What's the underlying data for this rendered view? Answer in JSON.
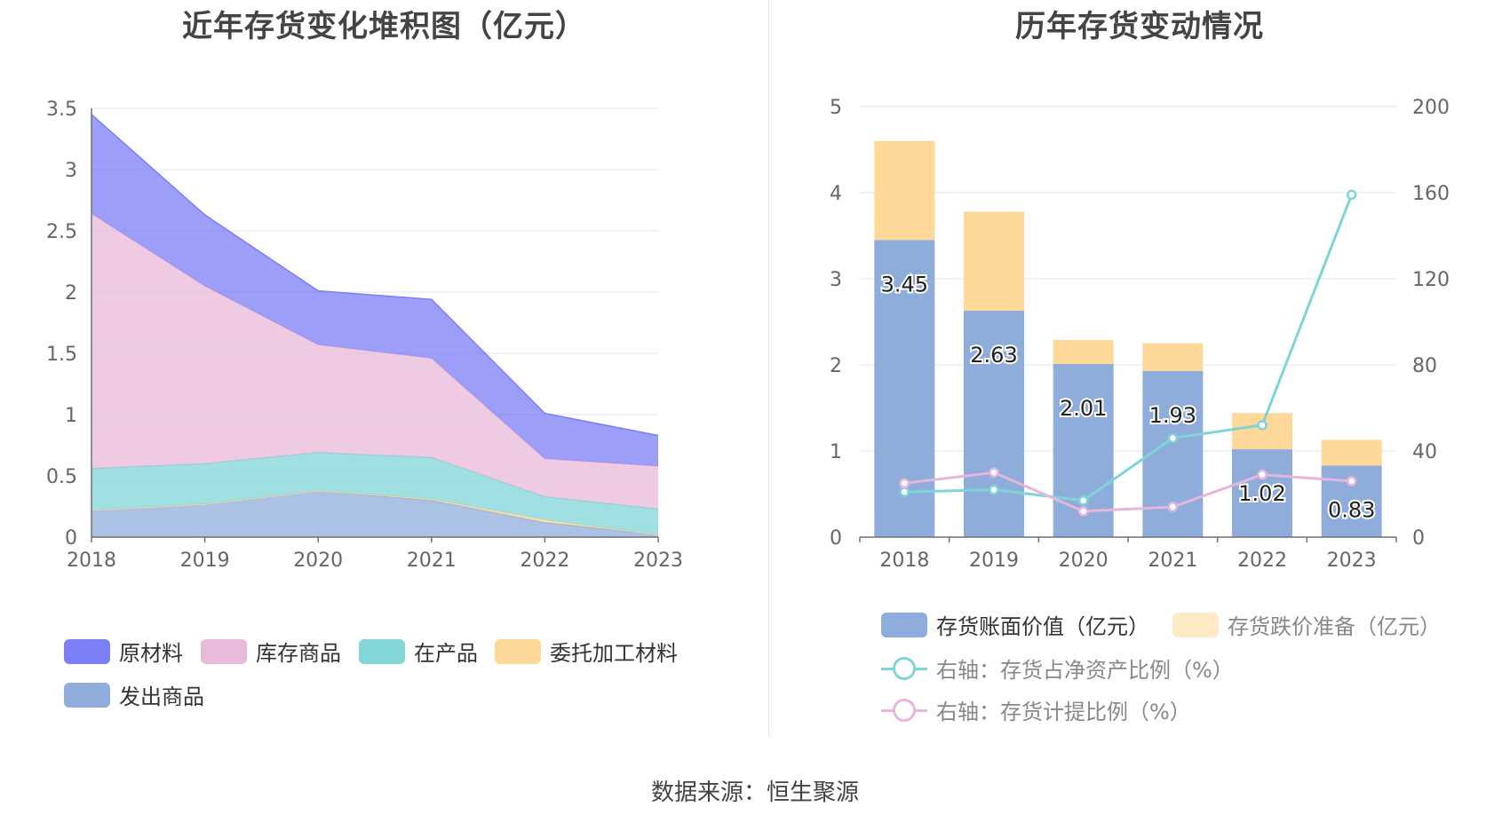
{
  "source": "数据来源：恒生聚源",
  "charts": {
    "left": {
      "title": "近年存货变化堆积图（亿元）",
      "legend": [
        "原材料",
        "库存商品",
        "在产品",
        "委托加工材料",
        "发出商品"
      ]
    },
    "right": {
      "title": "历年存货变动情况",
      "legend": [
        "存货账面价值（亿元）",
        "存货跌价准备（亿元）",
        "右轴：存货占净资产比例（%）",
        "右轴：存货计提比例（%）"
      ]
    }
  },
  "chart_data": [
    {
      "type": "area",
      "title": "近年存货变化堆积图（亿元）",
      "stacked": true,
      "categories": [
        "2018",
        "2019",
        "2020",
        "2021",
        "2022",
        "2023"
      ],
      "ylim": [
        0,
        3.5
      ],
      "yticks": [
        "0",
        "0.5",
        "1",
        "1.5",
        "2",
        "2.5",
        "3",
        "3.5"
      ],
      "grid": true,
      "legend_position": "bottom",
      "series": [
        {
          "name": "发出商品",
          "color": "#90aedb",
          "values": [
            0.22,
            0.27,
            0.38,
            0.3,
            0.12,
            0.02
          ]
        },
        {
          "name": "委托加工材料",
          "color": "#fdd899",
          "values": [
            0.0,
            0.0,
            0.0,
            0.01,
            0.02,
            0.0
          ]
        },
        {
          "name": "在产品",
          "color": "#82d6d8",
          "values": [
            0.34,
            0.33,
            0.31,
            0.34,
            0.19,
            0.21
          ]
        },
        {
          "name": "库存商品",
          "color": "#e8b9d8",
          "values": [
            2.08,
            1.45,
            0.88,
            0.81,
            0.31,
            0.35
          ]
        },
        {
          "name": "原材料",
          "color": "#7b7ef5",
          "values": [
            0.81,
            0.58,
            0.44,
            0.48,
            0.37,
            0.25
          ]
        }
      ]
    },
    {
      "type": "bar",
      "title": "历年存货变动情况",
      "stacked": true,
      "categories": [
        "2018",
        "2019",
        "2020",
        "2021",
        "2022",
        "2023"
      ],
      "ylim": [
        0,
        5
      ],
      "yticks": [
        "0",
        "1",
        "2",
        "3",
        "4",
        "5"
      ],
      "y2lim": [
        0,
        200
      ],
      "y2ticks": [
        "0",
        "40",
        "80",
        "120",
        "160",
        "200"
      ],
      "grid": true,
      "legend_position": "bottom",
      "series": [
        {
          "name": "存货账面价值（亿元）",
          "kind": "bar",
          "color": "#8fadda",
          "values": [
            3.45,
            2.63,
            2.01,
            1.93,
            1.02,
            0.83
          ],
          "labels": [
            "3.45",
            "2.63",
            "2.01",
            "1.93",
            "1.02",
            "0.83"
          ]
        },
        {
          "name": "存货跌价准备（亿元）",
          "kind": "bar",
          "color": "#fdd899",
          "values": [
            1.15,
            1.15,
            0.28,
            0.32,
            0.42,
            0.3
          ]
        },
        {
          "name": "右轴：存货占净资产比例（%）",
          "kind": "line",
          "axis": "right",
          "color": "#7fd4d6",
          "values": [
            21,
            22,
            17,
            46,
            52,
            159
          ]
        },
        {
          "name": "右轴：存货计提比例（%）",
          "kind": "line",
          "axis": "right",
          "color": "#e6b6dc",
          "values": [
            25,
            30,
            12,
            14,
            29,
            26
          ]
        }
      ]
    }
  ]
}
